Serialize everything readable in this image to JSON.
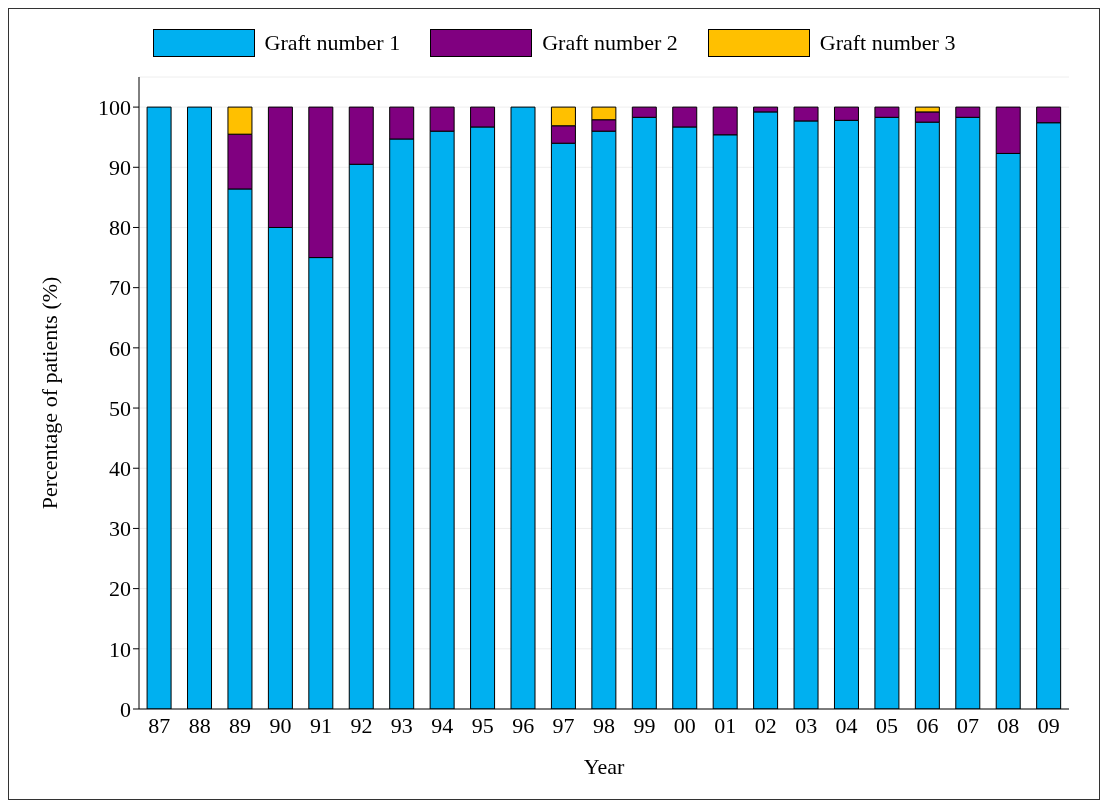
{
  "chart_data": {
    "type": "bar",
    "stacked": true,
    "xlabel": "Year",
    "ylabel": "Percentage of patients (%)",
    "categories": [
      "87",
      "88",
      "89",
      "90",
      "91",
      "92",
      "93",
      "94",
      "95",
      "96",
      "97",
      "98",
      "99",
      "00",
      "01",
      "02",
      "03",
      "04",
      "05",
      "06",
      "07",
      "08",
      "09"
    ],
    "series": [
      {
        "name": "Graft number 1",
        "color": "#00b0f0",
        "values": [
          100,
          100,
          86.4,
          80,
          75,
          90.5,
          94.7,
          96,
          96.7,
          100,
          94,
          96,
          98.3,
          96.7,
          95.4,
          99.2,
          97.7,
          97.8,
          98.3,
          97.5,
          98.3,
          92.3,
          97.4
        ]
      },
      {
        "name": "Graft number 2",
        "color": "#800080",
        "values": [
          0,
          0,
          9.1,
          20,
          25,
          9.5,
          5.3,
          4,
          3.3,
          0,
          2.9,
          1.9,
          1.7,
          3.3,
          4.6,
          0.8,
          2.3,
          2.2,
          1.7,
          1.7,
          1.7,
          7.7,
          2.6
        ]
      },
      {
        "name": "Graft number 3",
        "color": "#ffc000",
        "values": [
          0,
          0,
          4.5,
          0,
          0,
          0,
          0,
          0,
          0,
          0,
          3.1,
          2.1,
          0,
          0,
          0,
          0,
          0,
          0,
          0,
          0.8,
          0,
          0,
          0
        ]
      }
    ],
    "ylim": [
      0,
      105
    ],
    "yticks": [
      0,
      10,
      20,
      30,
      40,
      50,
      60,
      70,
      80,
      90,
      100
    ],
    "grid": "y",
    "legend": "top"
  }
}
